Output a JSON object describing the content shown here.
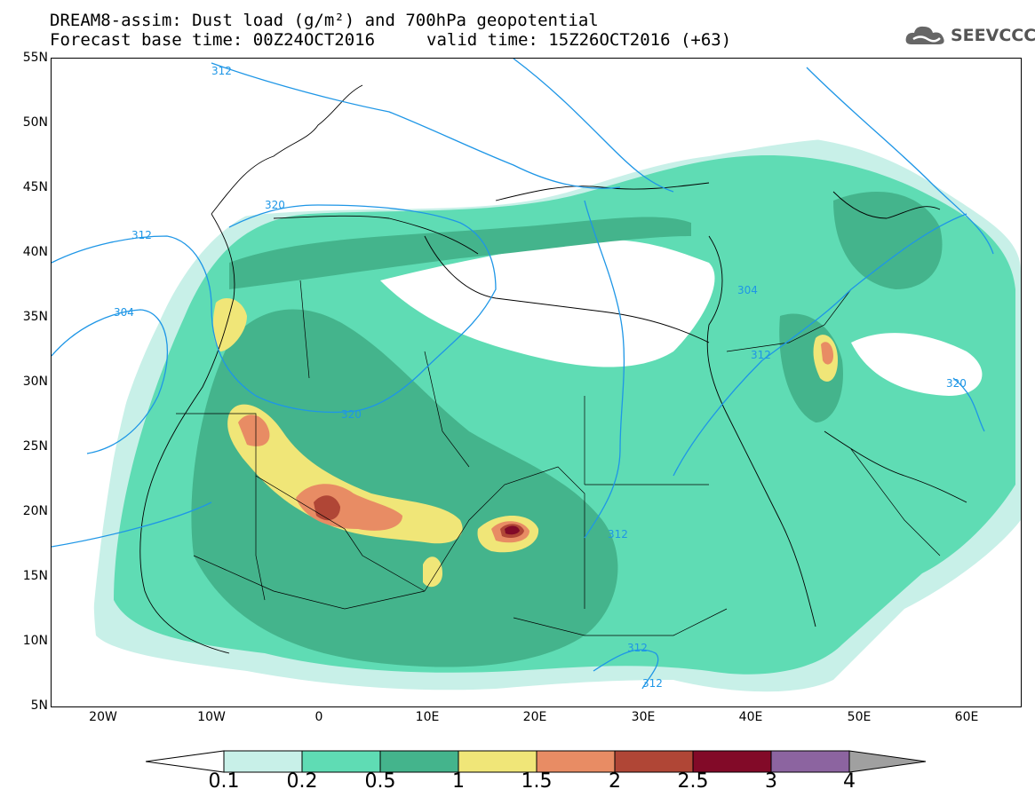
{
  "title": {
    "line1": "DREAM8-assim: Dust load (g/m²) and 700hPa geopotential",
    "base": "Forecast base time: 00Z24OCT2016",
    "valid": "valid time: 15Z26OCT2016 (+63)"
  },
  "logo": {
    "text": "SEEVCCC",
    "icon": "cloud-logo-icon"
  },
  "axes": {
    "lat_ticks": [
      "55N",
      "50N",
      "45N",
      "40N",
      "35N",
      "30N",
      "25N",
      "20N",
      "15N",
      "10N",
      "5N"
    ],
    "lon_ticks": [
      "20W",
      "10W",
      "0",
      "10E",
      "20E",
      "30E",
      "40E",
      "50E",
      "60E"
    ]
  },
  "contour_labels": [
    {
      "text": "312",
      "id": "c312a"
    },
    {
      "text": "320",
      "id": "c320a"
    },
    {
      "text": "312",
      "id": "c312b"
    },
    {
      "text": "304",
      "id": "c304a"
    },
    {
      "text": "320",
      "id": "c320b"
    },
    {
      "text": "304",
      "id": "c304b"
    },
    {
      "text": "312",
      "id": "c312c"
    },
    {
      "text": "320",
      "id": "c320c"
    },
    {
      "text": "312",
      "id": "c312d"
    },
    {
      "text": "312",
      "id": "c312e"
    },
    {
      "text": "312",
      "id": "c312f"
    }
  ],
  "legend": {
    "labels": [
      "0.1",
      "0.2",
      "0.5",
      "1",
      "1.5",
      "2",
      "2.5",
      "3",
      "4"
    ],
    "colors": [
      "#c8f0e8",
      "#5fdcb4",
      "#44b48c",
      "#f0e678",
      "#e88c64",
      "#b04636",
      "#820a28",
      "#8c64a0",
      "#a0a0a0"
    ]
  }
}
